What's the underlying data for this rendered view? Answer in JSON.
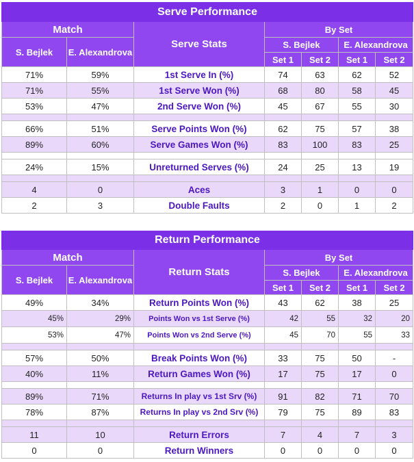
{
  "serve": {
    "title": "Serve Performance",
    "match_label": "Match",
    "stats_label": "Serve Stats",
    "byset_label": "By Set",
    "p1": "S. Bejlek",
    "p2": "E. Alexandrova",
    "set1": "Set 1",
    "set2": "Set 2",
    "rows": [
      {
        "label": "1st Serve In (%)",
        "m1": "71%",
        "m2": "59%",
        "a1": "74",
        "a2": "63",
        "b1": "62",
        "b2": "52"
      },
      {
        "label": "1st Serve Won (%)",
        "m1": "71%",
        "m2": "55%",
        "a1": "68",
        "a2": "80",
        "b1": "58",
        "b2": "45"
      },
      {
        "label": "2nd Serve Won (%)",
        "m1": "53%",
        "m2": "47%",
        "a1": "45",
        "a2": "67",
        "b1": "55",
        "b2": "30"
      },
      {
        "label": "Serve Points Won (%)",
        "m1": "66%",
        "m2": "51%",
        "a1": "62",
        "a2": "75",
        "b1": "57",
        "b2": "38"
      },
      {
        "label": "Serve Games Won (%)",
        "m1": "89%",
        "m2": "60%",
        "a1": "83",
        "a2": "100",
        "b1": "83",
        "b2": "25"
      },
      {
        "label": "Unreturned Serves (%)",
        "m1": "24%",
        "m2": "15%",
        "a1": "24",
        "a2": "25",
        "b1": "13",
        "b2": "19"
      },
      {
        "label": "Aces",
        "m1": "4",
        "m2": "0",
        "a1": "3",
        "a2": "1",
        "b1": "0",
        "b2": "0"
      },
      {
        "label": "Double Faults",
        "m1": "2",
        "m2": "3",
        "a1": "2",
        "a2": "0",
        "b1": "1",
        "b2": "2"
      }
    ]
  },
  "ret": {
    "title": "Return Performance",
    "match_label": "Match",
    "stats_label": "Return Stats",
    "byset_label": "By Set",
    "p1": "S. Bejlek",
    "p2": "E. Alexandrova",
    "set1": "Set 1",
    "set2": "Set 2",
    "rows": [
      {
        "label": "Return Points Won (%)",
        "m1": "49%",
        "m2": "34%",
        "a1": "43",
        "a2": "62",
        "b1": "38",
        "b2": "25"
      },
      {
        "label": "Points Won vs 1st Serve (%)",
        "m1": "45%",
        "m2": "29%",
        "a1": "42",
        "a2": "55",
        "b1": "32",
        "b2": "20"
      },
      {
        "label": "Points Won vs 2nd Serve (%)",
        "m1": "53%",
        "m2": "47%",
        "a1": "45",
        "a2": "70",
        "b1": "55",
        "b2": "33"
      },
      {
        "label": "Break Points Won (%)",
        "m1": "57%",
        "m2": "50%",
        "a1": "33",
        "a2": "75",
        "b1": "50",
        "b2": "-"
      },
      {
        "label": "Return Games Won (%)",
        "m1": "40%",
        "m2": "11%",
        "a1": "17",
        "a2": "75",
        "b1": "17",
        "b2": "0"
      },
      {
        "label": "Returns In play vs 1st Srv (%)",
        "m1": "89%",
        "m2": "71%",
        "a1": "91",
        "a2": "82",
        "b1": "71",
        "b2": "70"
      },
      {
        "label": "Returns In play vs 2nd Srv (%)",
        "m1": "78%",
        "m2": "87%",
        "a1": "79",
        "a2": "75",
        "b1": "89",
        "b2": "83"
      },
      {
        "label": "Return Errors",
        "m1": "11",
        "m2": "10",
        "a1": "7",
        "a2": "4",
        "b1": "7",
        "b2": "3"
      },
      {
        "label": "Return Winners",
        "m1": "0",
        "m2": "0",
        "a1": "0",
        "a2": "0",
        "b1": "0",
        "b2": "0"
      }
    ]
  }
}
